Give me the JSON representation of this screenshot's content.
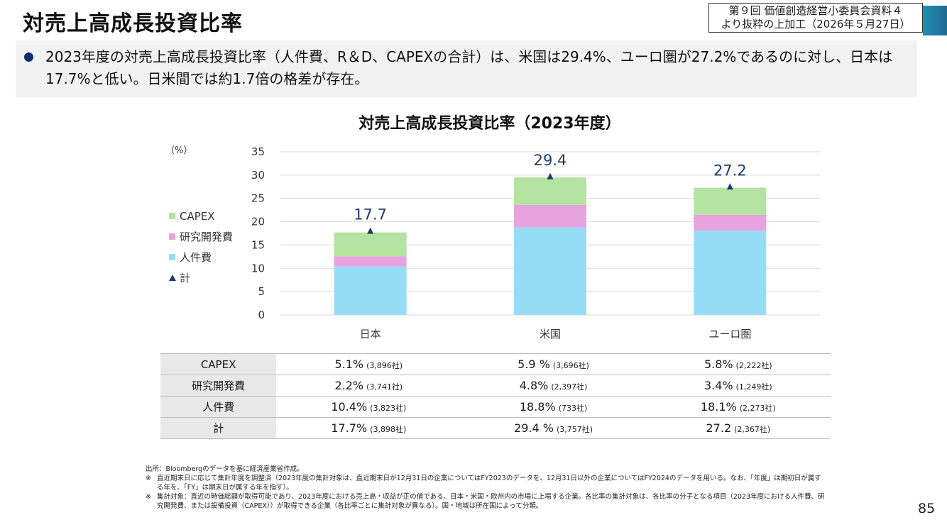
{
  "header": {
    "title": "対売上高成長投資比率",
    "source_line1": "第９回 価値創造経営小委員会資料４",
    "source_line2": "より抜粋の上加工（2026年５月27日）"
  },
  "summary": {
    "text": "2023年度の対売上高成長投資比率（人件費、R＆D、CAPEXの合計）は、米国は29.4%、ユーロ圏が27.2%であるのに対し、日本は17.7%と低い。日米間では約1.7倍の格差が存在。"
  },
  "chart_data": {
    "type": "bar",
    "stacked": true,
    "title": "対売上高成長投資比率（2023年度）",
    "ylabel": "（%）",
    "ylim": [
      0,
      35
    ],
    "yticks": [
      0,
      5,
      10,
      15,
      20,
      25,
      30,
      35
    ],
    "grid": true,
    "legend_position": "left",
    "categories": [
      "日本",
      "米国",
      "ユーロ圏"
    ],
    "series": [
      {
        "name": "人件費",
        "values": [
          10.4,
          18.8,
          18.1
        ],
        "color": "#97dcf7"
      },
      {
        "name": "研究開発費",
        "values": [
          2.2,
          4.8,
          3.4
        ],
        "color": "#e8a3de"
      },
      {
        "name": "CAPEX",
        "values": [
          5.1,
          5.9,
          5.8
        ],
        "color": "#b5e3a1"
      }
    ],
    "total": {
      "name": "計",
      "values": [
        17.7,
        29.4,
        27.2
      ],
      "labels": [
        "17.7",
        "29.4",
        "27.2"
      ],
      "color": "#1f3b66"
    },
    "legend_order": [
      "CAPEX",
      "研究開発費",
      "人件費",
      "計"
    ]
  },
  "table": {
    "rows": [
      {
        "label": "CAPEX",
        "cells": [
          {
            "value": "5.1%",
            "count": "(3,896社)"
          },
          {
            "value": "5.9 %",
            "count": "(3,696社)"
          },
          {
            "value": "5.8%",
            "count": "(2,222社)"
          }
        ]
      },
      {
        "label": "研究開発費",
        "cells": [
          {
            "value": "2.2%",
            "count": "(3,741社)"
          },
          {
            "value": "4.8%",
            "count": "(2,397社)"
          },
          {
            "value": "3.4%",
            "count": "(1,249社)"
          }
        ]
      },
      {
        "label": "人件費",
        "cells": [
          {
            "value": "10.4%",
            "count": "(3,823社)"
          },
          {
            "value": "18.8%",
            "count": "(733社)"
          },
          {
            "value": "18.1%",
            "count": "(2,273社)"
          }
        ]
      },
      {
        "label": "計",
        "cells": [
          {
            "value": "17.7%",
            "count": "(3,898社)"
          },
          {
            "value": "29.4 %",
            "count": "(3,757社)"
          },
          {
            "value": "27.2",
            "count": "(2,367社)"
          }
        ]
      }
    ]
  },
  "notes": {
    "source": "出所：Bloombergのデータを基に経済産業省作成。",
    "note1_mark": "※",
    "note1": "直近期末日に応じて集計年度を調整済（2023年度の集計対象は、直近期末日が12月31日の企業についてはFY2023のデータを、12月31日以外の企業についてはFY2024のデータを用いる。なお、「年度」は期初日が属する年を、「FY」は期末日が属する年を指す）。",
    "note2_mark": "※",
    "note2": "集計対象：直近の時価総額が取得可能であり、2023年度における売上高・収益が正の値である、日本・米国・欧州内の市場に上場する企業。各比率の集計対象は、各比率の分子となる項目（2023年度における人件費、研究開発費、または設備投資（CAPEX））が取得できる企業（各比率ごとに集計対象が異なる）。国・地域は所在国によって分類。"
  },
  "page_number": "85"
}
